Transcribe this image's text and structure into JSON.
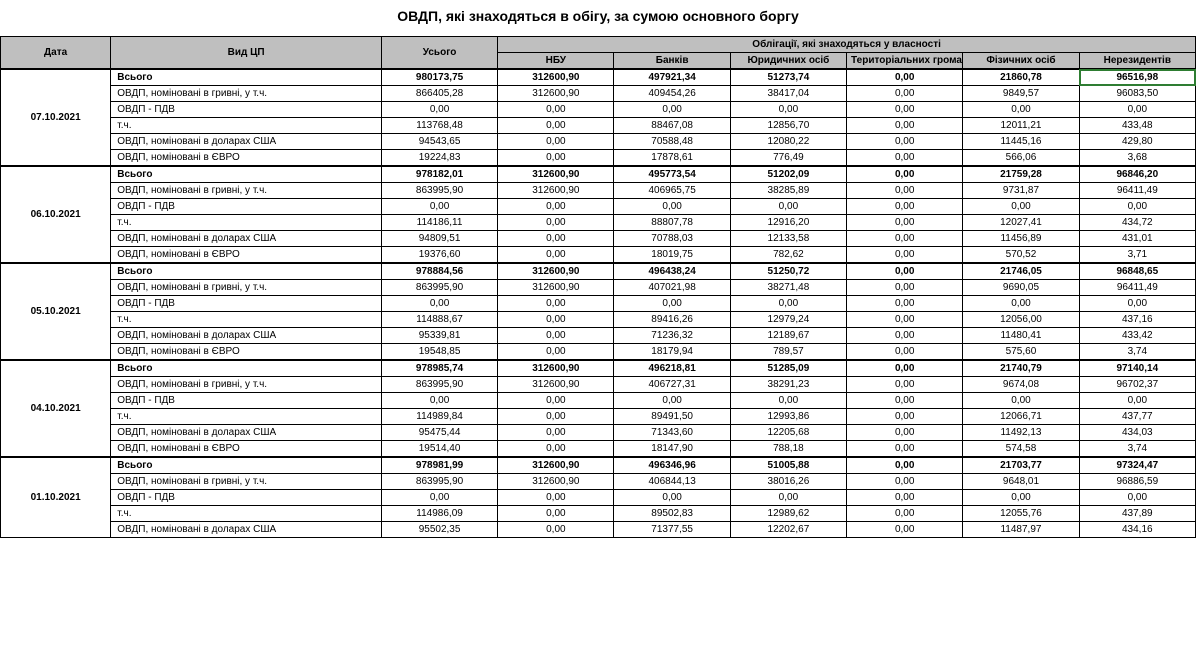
{
  "title": "ОВДП, які знаходяться в обігу, за сумою основного боргу",
  "headers": {
    "date": "Дата",
    "type": "Вид ЦП",
    "total": "Усього",
    "group": "Облігації, які знаходяться у власності",
    "c1": "НБУ",
    "c2": "Банків",
    "c3": "Юридичних осіб",
    "c4": "Територіальних громад",
    "c5": "Фізичних осіб",
    "c6": "Нерезидентів"
  },
  "rowLabels": {
    "total": "Всього",
    "r1": "ОВДП, номіновані в гривні, у т.ч.",
    "r2": "ОВДП - ПДВ",
    "r3": "т.ч.",
    "r4": "ОВДП, номіновані в доларах США",
    "r5": "ОВДП, номіновані в ЄВРО"
  },
  "blocks": [
    {
      "date": "07.10.2021",
      "rows": [
        {
          "bold": true,
          "k": "total",
          "v": [
            "980173,75",
            "312600,90",
            "497921,34",
            "51273,74",
            "0,00",
            "21860,78",
            "96516,98"
          ],
          "hl": 7
        },
        {
          "k": "r1",
          "v": [
            "866405,28",
            "312600,90",
            "409454,26",
            "38417,04",
            "0,00",
            "9849,57",
            "96083,50"
          ]
        },
        {
          "k": "r2",
          "v": [
            "0,00",
            "0,00",
            "0,00",
            "0,00",
            "0,00",
            "0,00",
            "0,00"
          ]
        },
        {
          "k": "r3",
          "v": [
            "113768,48",
            "0,00",
            "88467,08",
            "12856,70",
            "0,00",
            "12011,21",
            "433,48"
          ]
        },
        {
          "k": "r4",
          "v": [
            "94543,65",
            "0,00",
            "70588,48",
            "12080,22",
            "0,00",
            "11445,16",
            "429,80"
          ]
        },
        {
          "k": "r5",
          "v": [
            "19224,83",
            "0,00",
            "17878,61",
            "776,49",
            "0,00",
            "566,06",
            "3,68"
          ]
        }
      ]
    },
    {
      "date": "06.10.2021",
      "rows": [
        {
          "bold": true,
          "k": "total",
          "v": [
            "978182,01",
            "312600,90",
            "495773,54",
            "51202,09",
            "0,00",
            "21759,28",
            "96846,20"
          ]
        },
        {
          "k": "r1",
          "v": [
            "863995,90",
            "312600,90",
            "406965,75",
            "38285,89",
            "0,00",
            "9731,87",
            "96411,49"
          ]
        },
        {
          "k": "r2",
          "v": [
            "0,00",
            "0,00",
            "0,00",
            "0,00",
            "0,00",
            "0,00",
            "0,00"
          ]
        },
        {
          "k": "r3",
          "v": [
            "114186,11",
            "0,00",
            "88807,78",
            "12916,20",
            "0,00",
            "12027,41",
            "434,72"
          ]
        },
        {
          "k": "r4",
          "v": [
            "94809,51",
            "0,00",
            "70788,03",
            "12133,58",
            "0,00",
            "11456,89",
            "431,01"
          ]
        },
        {
          "k": "r5",
          "v": [
            "19376,60",
            "0,00",
            "18019,75",
            "782,62",
            "0,00",
            "570,52",
            "3,71"
          ]
        }
      ]
    },
    {
      "date": "05.10.2021",
      "rows": [
        {
          "bold": true,
          "k": "total",
          "v": [
            "978884,56",
            "312600,90",
            "496438,24",
            "51250,72",
            "0,00",
            "21746,05",
            "96848,65"
          ]
        },
        {
          "k": "r1",
          "v": [
            "863995,90",
            "312600,90",
            "407021,98",
            "38271,48",
            "0,00",
            "9690,05",
            "96411,49"
          ]
        },
        {
          "k": "r2",
          "v": [
            "0,00",
            "0,00",
            "0,00",
            "0,00",
            "0,00",
            "0,00",
            "0,00"
          ]
        },
        {
          "k": "r3",
          "v": [
            "114888,67",
            "0,00",
            "89416,26",
            "12979,24",
            "0,00",
            "12056,00",
            "437,16"
          ]
        },
        {
          "k": "r4",
          "v": [
            "95339,81",
            "0,00",
            "71236,32",
            "12189,67",
            "0,00",
            "11480,41",
            "433,42"
          ]
        },
        {
          "k": "r5",
          "v": [
            "19548,85",
            "0,00",
            "18179,94",
            "789,57",
            "0,00",
            "575,60",
            "3,74"
          ]
        }
      ]
    },
    {
      "date": "04.10.2021",
      "rows": [
        {
          "bold": true,
          "k": "total",
          "v": [
            "978985,74",
            "312600,90",
            "496218,81",
            "51285,09",
            "0,00",
            "21740,79",
            "97140,14"
          ]
        },
        {
          "k": "r1",
          "v": [
            "863995,90",
            "312600,90",
            "406727,31",
            "38291,23",
            "0,00",
            "9674,08",
            "96702,37"
          ]
        },
        {
          "k": "r2",
          "v": [
            "0,00",
            "0,00",
            "0,00",
            "0,00",
            "0,00",
            "0,00",
            "0,00"
          ]
        },
        {
          "k": "r3",
          "v": [
            "114989,84",
            "0,00",
            "89491,50",
            "12993,86",
            "0,00",
            "12066,71",
            "437,77"
          ]
        },
        {
          "k": "r4",
          "v": [
            "95475,44",
            "0,00",
            "71343,60",
            "12205,68",
            "0,00",
            "11492,13",
            "434,03"
          ]
        },
        {
          "k": "r5",
          "v": [
            "19514,40",
            "0,00",
            "18147,90",
            "788,18",
            "0,00",
            "574,58",
            "3,74"
          ]
        }
      ]
    },
    {
      "date": "01.10.2021",
      "rows": [
        {
          "bold": true,
          "k": "total",
          "v": [
            "978981,99",
            "312600,90",
            "496346,96",
            "51005,88",
            "0,00",
            "21703,77",
            "97324,47"
          ]
        },
        {
          "k": "r1",
          "v": [
            "863995,90",
            "312600,90",
            "406844,13",
            "38016,26",
            "0,00",
            "9648,01",
            "96886,59"
          ]
        },
        {
          "k": "r2",
          "v": [
            "0,00",
            "0,00",
            "0,00",
            "0,00",
            "0,00",
            "0,00",
            "0,00"
          ]
        },
        {
          "k": "r3",
          "v": [
            "114986,09",
            "0,00",
            "89502,83",
            "12989,62",
            "0,00",
            "12055,76",
            "437,89"
          ]
        },
        {
          "k": "r4",
          "v": [
            "95502,35",
            "0,00",
            "71377,55",
            "12202,67",
            "0,00",
            "11487,97",
            "434,16"
          ]
        }
      ]
    }
  ],
  "colors": {
    "headerBg": "#bfbfbf",
    "border": "#000000",
    "highlight": "#2e7d32"
  },
  "fontSizes": {
    "title": 14,
    "cell": 10
  }
}
